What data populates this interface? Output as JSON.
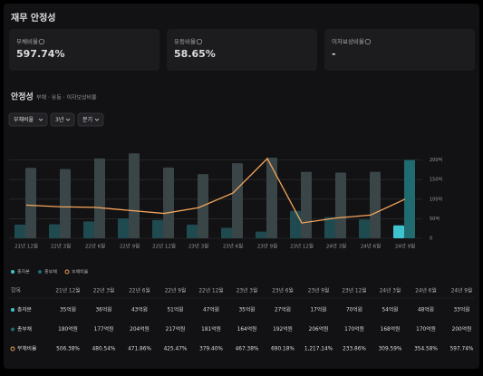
{
  "header": {
    "title": "재무 안정성"
  },
  "cards": [
    {
      "label": "부채비율",
      "value": "597.74%"
    },
    {
      "label": "유동비율",
      "value": "58.65%"
    },
    {
      "label": "이자보상비율",
      "value": "-"
    }
  ],
  "section": {
    "title": "안정성",
    "subtitle": "부채 · 유동 · 이자보상비율",
    "filters": [
      "부채비율",
      "3년",
      "분기"
    ]
  },
  "chart_data": {
    "type": "bar",
    "categories": [
      "21년 12월",
      "22년 3월",
      "22년 6월",
      "22년 9월",
      "22년 12월",
      "23년 3월",
      "23년 6월",
      "23년 9월",
      "23년 12월",
      "24년 3월",
      "24년 6월",
      "24년 9월"
    ],
    "series": [
      {
        "name": "총자본",
        "color": "#1f4a50",
        "highlight_color": "#3fc4cf",
        "values": [
          35,
          36,
          43,
          51,
          47,
          35,
          27,
          17,
          70,
          54,
          48,
          33
        ],
        "value_labels": [
          "35억원",
          "36억원",
          "43억원",
          "51억원",
          "47억원",
          "35억원",
          "27억원",
          "17억원",
          "70억원",
          "54억원",
          "48억원",
          "33억원"
        ]
      },
      {
        "name": "총부채",
        "color": "#3a4548",
        "highlight_color": "#1f6b70",
        "values": [
          180,
          177,
          204,
          217,
          181,
          164,
          192,
          206,
          170,
          168,
          170,
          200
        ],
        "value_labels": [
          "180억원",
          "177억원",
          "204억원",
          "217억원",
          "181억원",
          "164억원",
          "192억원",
          "206억원",
          "170억원",
          "168억원",
          "170억원",
          "200억원"
        ]
      },
      {
        "name": "부채비율",
        "type": "line",
        "axis": "y2",
        "color": "#f5a55a",
        "values": [
          506.38,
          480.54,
          471.86,
          425.47,
          379.4,
          467.38,
          690.18,
          1217.14,
          233.86,
          309.59,
          354.58,
          597.74
        ],
        "value_labels": [
          "506.38%",
          "480.54%",
          "471.86%",
          "425.47%",
          "379.40%",
          "467.38%",
          "690.18%",
          "1,217.14%",
          "233.86%",
          "309.59%",
          "354.58%",
          "597.74%"
        ]
      }
    ],
    "ylim": [
      0,
      220
    ],
    "yticks": [
      {
        "value": 0,
        "label": "0"
      },
      {
        "value": 50,
        "label": "50억"
      },
      {
        "value": 100,
        "label": "100억"
      },
      {
        "value": 150,
        "label": "150억"
      },
      {
        "value": 200,
        "label": "200억"
      }
    ],
    "y2lim": [
      0,
      1300
    ],
    "grid": true
  },
  "table": {
    "header": "항목"
  }
}
